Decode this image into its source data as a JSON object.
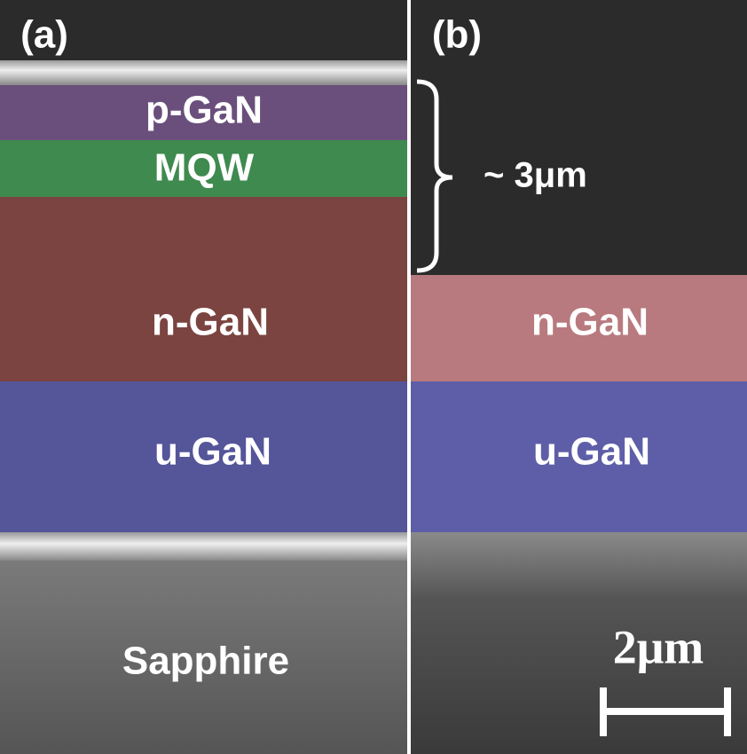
{
  "panels": [
    {
      "label": "(a)",
      "layers": [
        "p-GaN",
        "MQW",
        "n-GaN",
        "u-GaN",
        "Sapphire"
      ]
    },
    {
      "label": "(b)",
      "layers": [
        "n-GaN",
        "u-GaN"
      ]
    }
  ],
  "thickness_annotation": "~ 3μm",
  "scale_bar": "2μm"
}
